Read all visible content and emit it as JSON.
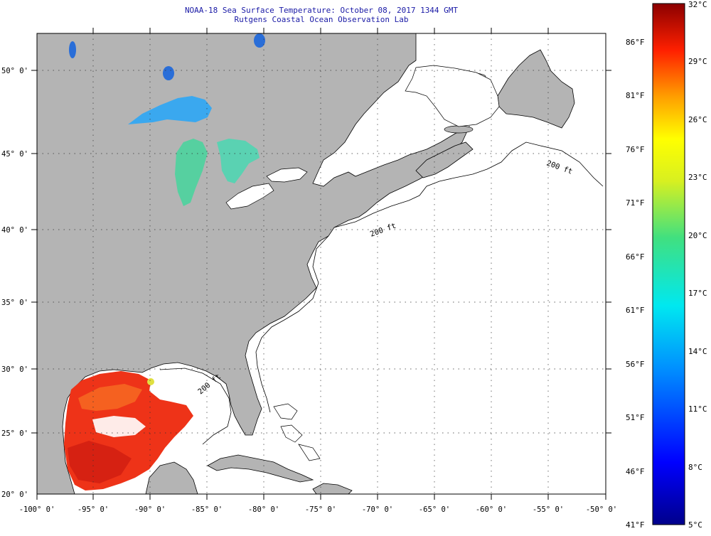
{
  "header": {
    "title": "NOAA-18 Sea Surface Temperature:  October 08, 2017 1344 GMT",
    "subtitle": "Rutgens Coastal Ocean Observation Lab"
  },
  "axes": {
    "lat_labels": [
      "50° 0'",
      "45° 0'",
      "40° 0'",
      "35° 0'",
      "30° 0'",
      "25° 0'",
      "20° 0'"
    ],
    "lon_labels": [
      "-100° 0'",
      "-95° 0'",
      "-90° 0'",
      "-85° 0'",
      "-80° 0'",
      "-75° 0'",
      "-70° 0'",
      "-65° 0'",
      "-60° 0'",
      "-55° 0'",
      "-50° 0'"
    ],
    "lat_range": [
      20,
      52.5
    ],
    "lon_range": [
      -100,
      -50
    ]
  },
  "isobath_label": "200 ft",
  "colorbar": {
    "range_c": [
      5,
      32
    ],
    "celsius": [
      "32°C",
      "29°C",
      "26°C",
      "23°C",
      "20°C",
      "17°C",
      "14°C",
      "11°C",
      "8°C",
      "5°C"
    ],
    "fahrenheit": [
      "86°F",
      "81°F",
      "76°F",
      "71°F",
      "66°F",
      "61°F",
      "56°F",
      "51°F",
      "46°F",
      "41°F"
    ]
  },
  "colors": {
    "land": "#b4b4b4",
    "title_text": "#1a1aa6",
    "ocean_no_data": "#ffffff",
    "gulf_warm": "#ee3318",
    "lakes": "#3aa0f0"
  }
}
